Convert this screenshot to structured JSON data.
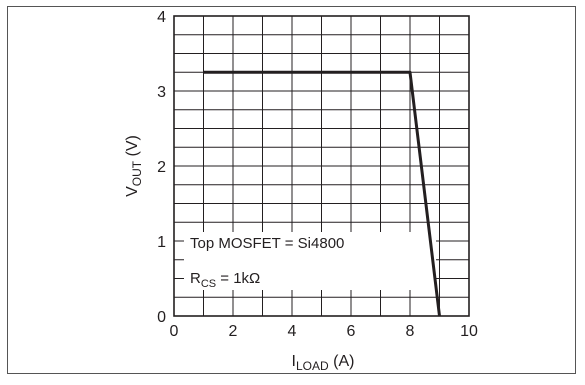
{
  "chart_data": {
    "type": "line",
    "title": "",
    "xlabel": {
      "main": "I",
      "sub": "LOAD",
      "unit": " (A)"
    },
    "ylabel": {
      "main": "V",
      "sub": "OUT",
      "unit": " (V)"
    },
    "xlim": [
      0,
      10
    ],
    "ylim": [
      0,
      4
    ],
    "x_ticks": [
      "0",
      "2",
      "4",
      "6",
      "8",
      "10"
    ],
    "y_ticks": [
      "0",
      "1",
      "2",
      "3",
      "4"
    ],
    "grid": true,
    "series": [
      {
        "x": [
          1,
          8,
          9
        ],
        "y": [
          3.25,
          3.25,
          0
        ]
      }
    ],
    "annotations": [
      {
        "text": "Top MOSFET = Si4800"
      },
      {
        "main": "R",
        "sub": "CS",
        "rest": " = 1kΩ"
      }
    ],
    "colors": {
      "line": "#231f20",
      "grid": "#231f20",
      "frame": "#555555"
    }
  }
}
